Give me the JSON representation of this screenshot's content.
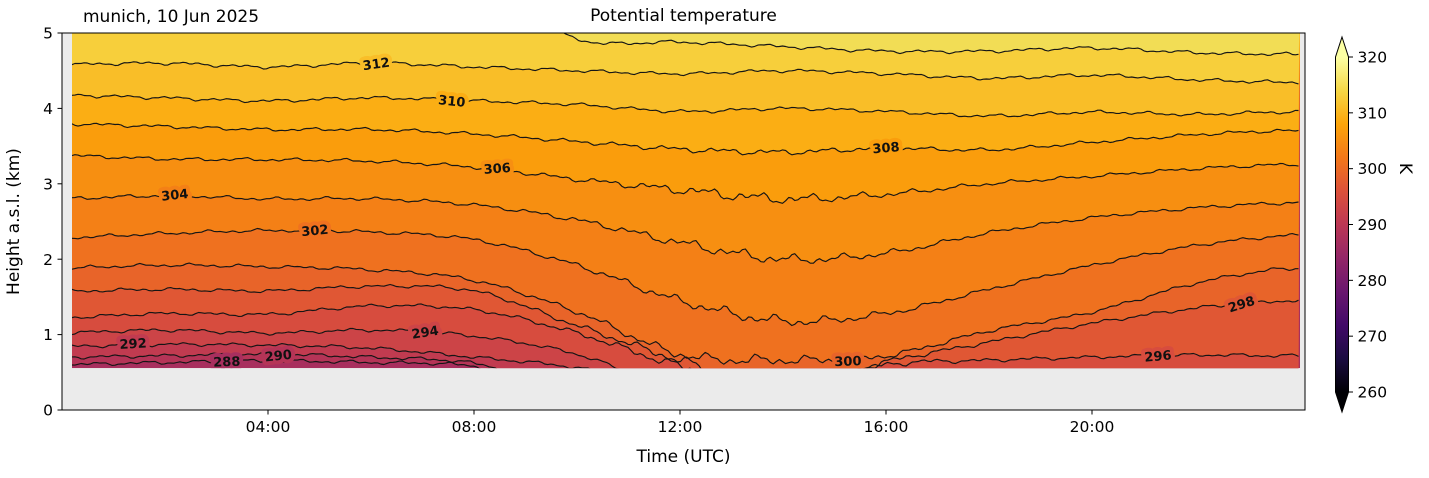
{
  "chart_data": {
    "type": "filled_contour",
    "title": "Potential temperature",
    "annotation": "munich, 10 Jun 2025",
    "xlabel": "Time (UTC)",
    "ylabel": "Height a.s.l. (km)",
    "units": "K",
    "colormap": "inferno",
    "x_tick_labels": [
      "04:00",
      "08:00",
      "12:00",
      "16:00",
      "20:00"
    ],
    "x_tick_hours": [
      4,
      8,
      12,
      16,
      20
    ],
    "x_range_hours": [
      0,
      24.1
    ],
    "y_tick_labels": [
      "0",
      "1",
      "2",
      "3",
      "4",
      "5"
    ],
    "y_range_km": [
      0,
      5
    ],
    "ground_level_km": 0.555,
    "contour_interval_K": 2,
    "colorbar": {
      "label": "K",
      "ticks": [
        260,
        270,
        280,
        290,
        300,
        310,
        320
      ],
      "vmin": 260,
      "vmax": 320,
      "extend": "both"
    },
    "colorbar_gradient_bottom_to_top": [
      "#000004",
      "#1b0c41",
      "#420a68",
      "#6a176e",
      "#932667",
      "#bc3754",
      "#dd513a",
      "#f37819",
      "#fca50a",
      "#f6d746",
      "#fcffa4"
    ],
    "hours_grid": [
      0,
      2,
      4,
      6,
      8,
      10,
      12,
      14,
      16,
      18,
      20,
      22,
      23.5,
      24.1
    ],
    "contours": [
      {
        "level_K": 288,
        "heights_km": [
          0.6,
          0.63,
          0.65,
          0.63,
          0.58,
          null,
          null,
          null,
          null,
          null,
          null,
          null,
          null,
          null
        ],
        "label": {
          "hour": 3.2,
          "height_km": 0.63,
          "rotation_deg": -2
        }
      },
      {
        "level_K": 290,
        "heights_km": [
          0.7,
          0.72,
          0.74,
          0.7,
          0.62,
          null,
          null,
          null,
          null,
          null,
          null,
          null,
          null,
          null
        ],
        "label": {
          "hour": 4.2,
          "height_km": 0.72,
          "rotation_deg": -6
        }
      },
      {
        "level_K": 292,
        "heights_km": [
          0.84,
          0.87,
          0.86,
          0.82,
          0.7,
          0.56,
          null,
          null,
          null,
          null,
          null,
          null,
          null,
          null
        ],
        "label": {
          "hour": 1.38,
          "height_km": 0.85,
          "rotation_deg": -3
        }
      },
      {
        "level_K": 294,
        "heights_km": [
          1.02,
          1.06,
          1.02,
          1.06,
          0.98,
          0.74,
          null,
          null,
          null,
          null,
          null,
          null,
          null,
          null
        ],
        "label": {
          "hour": 7.05,
          "height_km": 0.95,
          "rotation_deg": -9
        }
      },
      {
        "level_K": 296,
        "heights_km": [
          1.22,
          1.28,
          1.27,
          1.38,
          1.33,
          1.02,
          0.58,
          null,
          0.6,
          0.66,
          0.7,
          0.73,
          0.72,
          0.72
        ],
        "label": {
          "hour": 21.28,
          "height_km": 0.71,
          "rotation_deg": -5
        }
      },
      {
        "level_K": 298,
        "heights_km": [
          1.57,
          1.6,
          1.58,
          1.64,
          1.58,
          1.12,
          0.66,
          null,
          0.64,
          0.9,
          1.15,
          1.35,
          1.44,
          1.45
        ],
        "label": {
          "hour": 22.9,
          "height_km": 1.43,
          "rotation_deg": -18
        }
      },
      {
        "level_K": 300,
        "heights_km": [
          1.88,
          1.92,
          1.9,
          1.86,
          1.72,
          1.3,
          0.74,
          0.66,
          0.72,
          1.05,
          1.3,
          1.68,
          1.86,
          1.88
        ],
        "label": {
          "hour": 15.26,
          "height_km": 0.67,
          "rotation_deg": -2
        }
      },
      {
        "level_K": 302,
        "heights_km": [
          2.28,
          2.34,
          2.38,
          2.36,
          2.26,
          1.92,
          1.45,
          1.18,
          1.28,
          1.6,
          1.92,
          2.18,
          2.3,
          2.32
        ],
        "label": {
          "hour": 4.91,
          "height_km": 2.37,
          "rotation_deg": -5
        }
      },
      {
        "level_K": 304,
        "heights_km": [
          2.8,
          2.84,
          2.8,
          2.8,
          2.72,
          2.52,
          2.22,
          2.0,
          2.08,
          2.35,
          2.55,
          2.68,
          2.74,
          2.75
        ],
        "label": {
          "hour": 2.19,
          "height_km": 2.84,
          "rotation_deg": -6
        }
      },
      {
        "level_K": 306,
        "heights_km": [
          3.38,
          3.33,
          3.32,
          3.3,
          3.22,
          3.06,
          2.92,
          2.8,
          2.86,
          3.0,
          3.1,
          3.2,
          3.25,
          3.26
        ],
        "label": {
          "hour": 8.45,
          "height_km": 3.3,
          "rotation_deg": -4
        }
      },
      {
        "level_K": 308,
        "heights_km": [
          3.8,
          3.76,
          3.72,
          3.72,
          3.66,
          3.56,
          3.46,
          3.42,
          3.47,
          3.45,
          3.55,
          3.65,
          3.7,
          3.7
        ],
        "label": {
          "hour": 16.0,
          "height_km": 3.46,
          "rotation_deg": -5
        }
      },
      {
        "level_K": 310,
        "heights_km": [
          4.18,
          4.14,
          4.1,
          4.14,
          4.1,
          4.05,
          3.96,
          4.0,
          3.96,
          3.9,
          3.95,
          3.92,
          3.95,
          3.95
        ],
        "label": {
          "hour": 7.57,
          "height_km": 4.12,
          "rotation_deg": 6
        }
      },
      {
        "level_K": 312,
        "heights_km": [
          4.58,
          4.6,
          4.55,
          4.6,
          4.55,
          4.5,
          4.46,
          4.5,
          4.46,
          4.4,
          4.44,
          4.38,
          4.35,
          4.35
        ],
        "label": {
          "hour": 6.1,
          "height_km": 4.57,
          "rotation_deg": -8
        }
      },
      {
        "level_K": 314,
        "heights_km": [
          null,
          null,
          null,
          null,
          null,
          4.92,
          4.88,
          4.82,
          4.76,
          4.76,
          4.8,
          4.74,
          4.72,
          4.72
        ],
        "label": null
      }
    ],
    "band_fill_colors": [
      {
        "min_K": null,
        "max_K": 288,
        "hex": "#a82f5e"
      },
      {
        "min_K": 288,
        "max_K": 290,
        "hex": "#b53457"
      },
      {
        "min_K": 290,
        "max_K": 292,
        "hex": "#c13b50"
      },
      {
        "min_K": 292,
        "max_K": 294,
        "hex": "#cc4447"
      },
      {
        "min_K": 294,
        "max_K": 296,
        "hex": "#d74c3e"
      },
      {
        "min_K": 296,
        "max_K": 298,
        "hex": "#e05734"
      },
      {
        "min_K": 298,
        "max_K": 300,
        "hex": "#e86429"
      },
      {
        "min_K": 300,
        "max_K": 302,
        "hex": "#ef711f"
      },
      {
        "min_K": 302,
        "max_K": 304,
        "hex": "#f48016"
      },
      {
        "min_K": 304,
        "max_K": 306,
        "hex": "#f78f11"
      },
      {
        "min_K": 306,
        "max_K": 308,
        "hex": "#fa9d0c"
      },
      {
        "min_K": 308,
        "max_K": 310,
        "hex": "#fbae14"
      },
      {
        "min_K": 310,
        "max_K": 312,
        "hex": "#f9be28"
      },
      {
        "min_K": 312,
        "max_K": 314,
        "hex": "#f7cf3b"
      },
      {
        "min_K": 314,
        "max_K": null,
        "hex": "#f2dd55"
      }
    ],
    "below_ground_color": "#ebebeb",
    "contour_line_color": "#151515"
  }
}
